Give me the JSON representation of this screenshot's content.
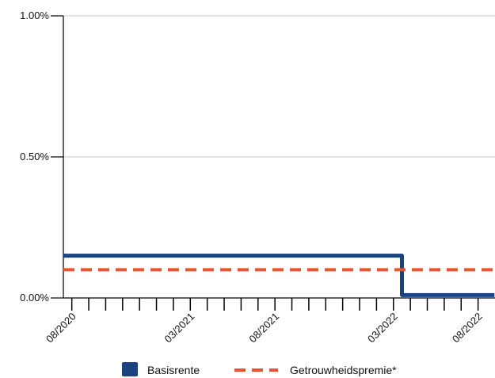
{
  "chart_data": {
    "type": "line",
    "title": "",
    "xlabel": "",
    "ylabel": "",
    "x_start": "08/2020",
    "x_end": "09/2022",
    "x_tick_labels": [
      "08/2020",
      "03/2021",
      "08/2021",
      "03/2022",
      "08/2022"
    ],
    "x_tick_label_dates": [
      "2020-08",
      "2021-03",
      "2021-08",
      "2022-03",
      "2022-08"
    ],
    "ylim": [
      0,
      1.0
    ],
    "y_ticks": [
      {
        "value": 0,
        "label": "0.00%"
      },
      {
        "value": 0.5,
        "label": "0.50%"
      },
      {
        "value": 1.0,
        "label": "1.00%"
      }
    ],
    "grid": "horizontal",
    "legend_position": "bottom",
    "series": [
      {
        "name": "Basisrente",
        "color": "#1a4480",
        "style": "solid",
        "shape": "step",
        "points": [
          {
            "x": "2020-08-01",
            "y": 0.15
          },
          {
            "x": "2022-04-01",
            "y": 0.15
          },
          {
            "x": "2022-04-01",
            "y": 0.01
          },
          {
            "x": "2022-09-15",
            "y": 0.01
          }
        ]
      },
      {
        "name": "Getrouwheidspremie*",
        "color": "#e8532c",
        "style": "dashed",
        "shape": "step",
        "points": [
          {
            "x": "2020-08-01",
            "y": 0.1
          },
          {
            "x": "2022-09-15",
            "y": 0.1
          }
        ]
      }
    ]
  }
}
